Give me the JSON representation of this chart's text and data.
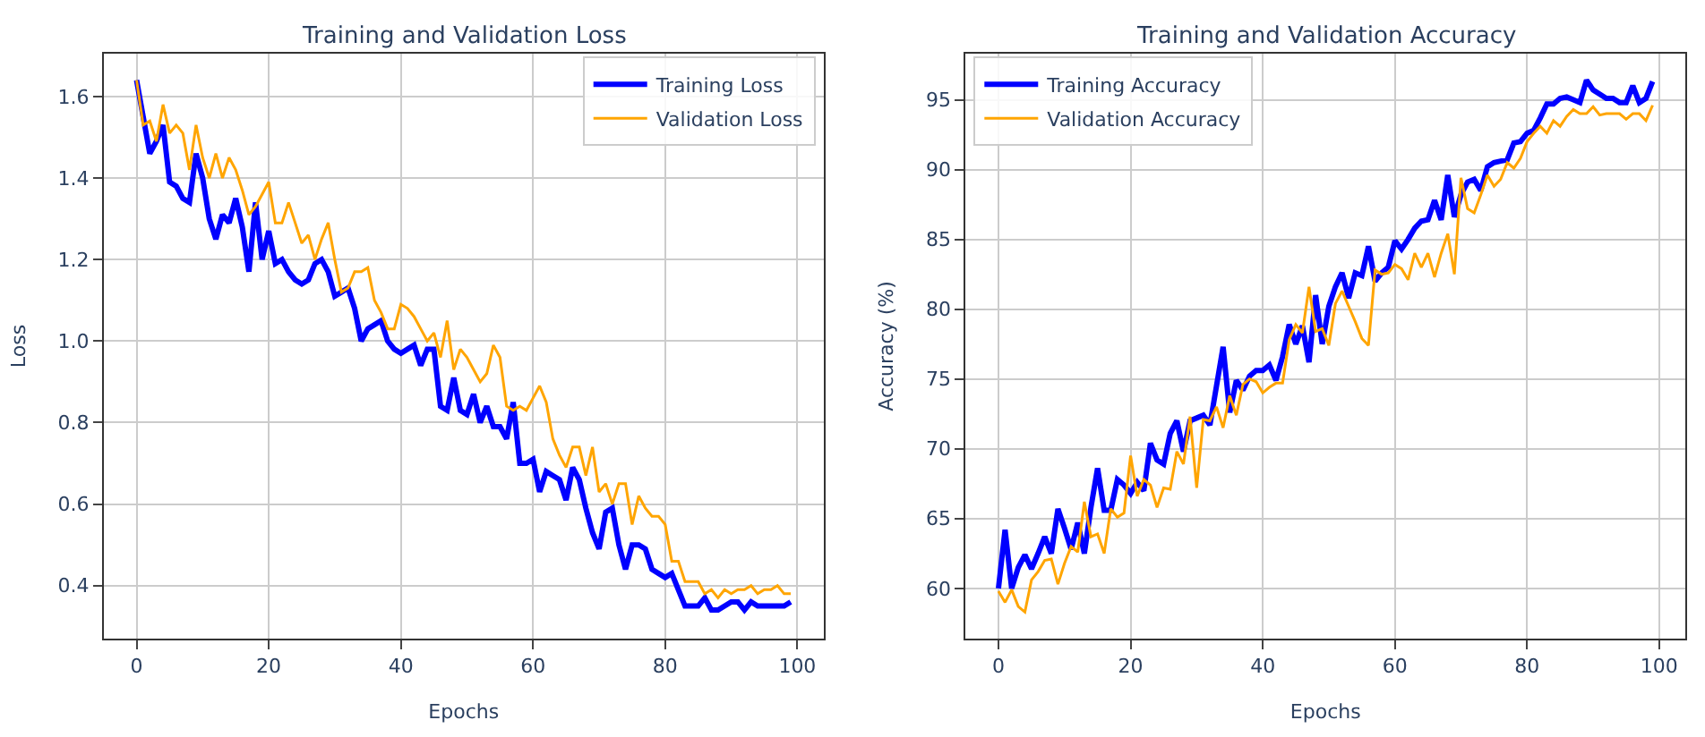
{
  "chart_data": [
    {
      "type": "line",
      "title": "Training and Validation Loss",
      "xlabel": "Epochs",
      "ylabel": "Loss",
      "grid": true,
      "legend": "top right",
      "marker": "none",
      "line_style": "solid",
      "x": [
        0,
        1,
        2,
        3,
        4,
        5,
        6,
        7,
        8,
        9,
        10,
        11,
        12,
        13,
        14,
        15,
        16,
        17,
        18,
        19,
        20,
        21,
        22,
        23,
        24,
        25,
        26,
        27,
        28,
        29,
        30,
        31,
        32,
        33,
        34,
        35,
        36,
        37,
        38,
        39,
        40,
        41,
        42,
        43,
        44,
        45,
        46,
        47,
        48,
        49,
        50,
        51,
        52,
        53,
        54,
        55,
        56,
        57,
        58,
        59,
        60,
        61,
        62,
        63,
        64,
        65,
        66,
        67,
        68,
        69,
        70,
        71,
        72,
        73,
        74,
        75,
        76,
        77,
        78,
        79,
        80,
        81,
        82,
        83,
        84,
        85,
        86,
        87,
        88,
        89,
        90,
        91,
        92,
        93,
        94,
        95,
        96,
        97,
        98,
        99
      ],
      "xlim": [
        -4.95,
        103.95
      ],
      "xticks": [
        0,
        20,
        40,
        60,
        80,
        100
      ],
      "ylim": [
        0.27,
        1.705
      ],
      "yticks": [
        {
          "value": 0.4,
          "label": "0.4"
        },
        {
          "value": 0.6,
          "label": "0.6"
        },
        {
          "value": 0.8,
          "label": "0.8"
        },
        {
          "value": 1.0,
          "label": "1.0"
        },
        {
          "value": 1.2,
          "label": "1.2"
        },
        {
          "value": 1.4,
          "label": "1.4"
        },
        {
          "value": 1.6,
          "label": "1.6"
        }
      ],
      "series": [
        {
          "name": "Training Loss",
          "color": "#0000ff",
          "values": [
            1.64,
            1.55,
            1.46,
            1.49,
            1.53,
            1.39,
            1.38,
            1.35,
            1.34,
            1.46,
            1.4,
            1.3,
            1.25,
            1.31,
            1.29,
            1.35,
            1.28,
            1.17,
            1.34,
            1.2,
            1.27,
            1.19,
            1.2,
            1.17,
            1.15,
            1.14,
            1.15,
            1.19,
            1.2,
            1.17,
            1.11,
            1.12,
            1.13,
            1.08,
            1.0,
            1.03,
            1.04,
            1.05,
            1.0,
            0.98,
            0.97,
            0.98,
            0.99,
            0.94,
            0.98,
            0.98,
            0.84,
            0.83,
            0.91,
            0.83,
            0.82,
            0.87,
            0.8,
            0.84,
            0.79,
            0.79,
            0.76,
            0.85,
            0.7,
            0.7,
            0.71,
            0.63,
            0.68,
            0.67,
            0.66,
            0.61,
            0.69,
            0.66,
            0.59,
            0.53,
            0.49,
            0.58,
            0.59,
            0.5,
            0.44,
            0.5,
            0.5,
            0.49,
            0.44,
            0.43,
            0.42,
            0.43,
            0.39,
            0.35,
            0.35,
            0.35,
            0.37,
            0.34,
            0.34,
            0.35,
            0.36,
            0.36,
            0.34,
            0.36,
            0.35,
            0.35,
            0.35,
            0.35,
            0.35,
            0.36
          ]
        },
        {
          "name": "Validation Loss",
          "color": "#ffa500",
          "values": [
            1.64,
            1.53,
            1.54,
            1.49,
            1.58,
            1.51,
            1.53,
            1.51,
            1.42,
            1.53,
            1.45,
            1.4,
            1.46,
            1.4,
            1.45,
            1.42,
            1.37,
            1.31,
            1.33,
            1.36,
            1.39,
            1.29,
            1.29,
            1.34,
            1.29,
            1.24,
            1.26,
            1.2,
            1.25,
            1.29,
            1.2,
            1.12,
            1.13,
            1.17,
            1.17,
            1.18,
            1.1,
            1.07,
            1.03,
            1.03,
            1.09,
            1.08,
            1.06,
            1.03,
            1.0,
            1.02,
            0.96,
            1.05,
            0.93,
            0.98,
            0.96,
            0.93,
            0.9,
            0.92,
            0.99,
            0.96,
            0.84,
            0.83,
            0.84,
            0.83,
            0.86,
            0.89,
            0.85,
            0.76,
            0.72,
            0.69,
            0.74,
            0.74,
            0.67,
            0.74,
            0.63,
            0.65,
            0.6,
            0.65,
            0.65,
            0.55,
            0.62,
            0.59,
            0.57,
            0.57,
            0.55,
            0.46,
            0.46,
            0.41,
            0.41,
            0.41,
            0.38,
            0.39,
            0.37,
            0.39,
            0.38,
            0.39,
            0.39,
            0.4,
            0.38,
            0.39,
            0.39,
            0.4,
            0.38,
            0.38
          ]
        }
      ]
    },
    {
      "type": "line",
      "title": "Training and Validation Accuracy",
      "xlabel": "Epochs",
      "ylabel": "Accuracy (%)",
      "grid": true,
      "legend": "top left",
      "marker": "none",
      "line_style": "solid",
      "x": [
        0,
        1,
        2,
        3,
        4,
        5,
        6,
        7,
        8,
        9,
        10,
        11,
        12,
        13,
        14,
        15,
        16,
        17,
        18,
        19,
        20,
        21,
        22,
        23,
        24,
        25,
        26,
        27,
        28,
        29,
        30,
        31,
        32,
        33,
        34,
        35,
        36,
        37,
        38,
        39,
        40,
        41,
        42,
        43,
        44,
        45,
        46,
        47,
        48,
        49,
        50,
        51,
        52,
        53,
        54,
        55,
        56,
        57,
        58,
        59,
        60,
        61,
        62,
        63,
        64,
        65,
        66,
        67,
        68,
        69,
        70,
        71,
        72,
        73,
        74,
        75,
        76,
        77,
        78,
        79,
        80,
        81,
        82,
        83,
        84,
        85,
        86,
        87,
        88,
        89,
        90,
        91,
        92,
        93,
        94,
        95,
        96,
        97,
        98,
        99
      ],
      "xlim": [
        -4.95,
        103.95
      ],
      "xticks": [
        0,
        20,
        40,
        60,
        80,
        100
      ],
      "ylim": [
        56.4,
        98.3
      ],
      "yticks": [
        60,
        65,
        70,
        75,
        80,
        85,
        90,
        95
      ],
      "series": [
        {
          "name": "Training Accuracy",
          "color": "#0000ff",
          "values": [
            60.0,
            64.2,
            60.0,
            61.5,
            62.4,
            61.4,
            62.5,
            63.7,
            62.5,
            65.7,
            64.3,
            62.8,
            64.7,
            62.5,
            65.8,
            68.6,
            65.6,
            65.6,
            67.8,
            67.4,
            66.8,
            67.6,
            67.0,
            70.4,
            69.2,
            68.9,
            71.1,
            72.0,
            69.8,
            72.0,
            72.2,
            72.4,
            71.7,
            74.5,
            77.3,
            72.6,
            74.9,
            74.2,
            75.2,
            75.6,
            75.6,
            76.0,
            74.9,
            76.6,
            78.9,
            77.5,
            78.8,
            76.2,
            81.0,
            77.5,
            80.2,
            81.6,
            82.6,
            80.8,
            82.6,
            82.4,
            84.5,
            82.0,
            82.6,
            83.0,
            84.9,
            84.3,
            85.0,
            85.8,
            86.3,
            86.4,
            87.8,
            86.4,
            89.6,
            86.6,
            88.2,
            89.1,
            89.3,
            88.5,
            90.2,
            90.5,
            90.6,
            90.7,
            91.9,
            92.0,
            92.6,
            92.8,
            93.7,
            94.7,
            94.7,
            95.1,
            95.2,
            95.0,
            94.8,
            96.4,
            95.7,
            95.4,
            95.1,
            95.1,
            94.8,
            94.8,
            96.0,
            94.8,
            95.1,
            96.3
          ]
        },
        {
          "name": "Validation Accuracy",
          "color": "#ffa500",
          "values": [
            59.8,
            59.0,
            59.9,
            58.7,
            58.3,
            60.6,
            61.2,
            62.0,
            62.1,
            60.3,
            61.8,
            63.0,
            62.6,
            66.2,
            63.7,
            63.9,
            62.5,
            65.7,
            65.1,
            65.4,
            69.5,
            66.6,
            67.8,
            67.4,
            65.8,
            67.2,
            67.1,
            69.8,
            68.9,
            72.3,
            67.2,
            72.1,
            72.0,
            73.0,
            71.5,
            73.8,
            72.4,
            74.6,
            75.0,
            74.8,
            74.0,
            74.4,
            74.7,
            74.7,
            77.8,
            78.9,
            78.3,
            81.6,
            78.4,
            78.6,
            77.4,
            80.4,
            81.3,
            80.2,
            79.1,
            77.9,
            77.4,
            82.8,
            82.5,
            82.6,
            83.2,
            82.9,
            82.1,
            84.0,
            83.0,
            84.0,
            82.3,
            84.0,
            85.4,
            82.5,
            89.4,
            87.2,
            86.9,
            88.2,
            89.6,
            88.8,
            89.3,
            90.5,
            90.1,
            90.8,
            92.0,
            92.6,
            93.1,
            92.6,
            93.5,
            93.1,
            93.8,
            94.3,
            94.0,
            94.0,
            94.5,
            93.9,
            94.0,
            94.0,
            94.0,
            93.6,
            94.0,
            94.0,
            93.5,
            94.6
          ]
        }
      ]
    }
  ]
}
